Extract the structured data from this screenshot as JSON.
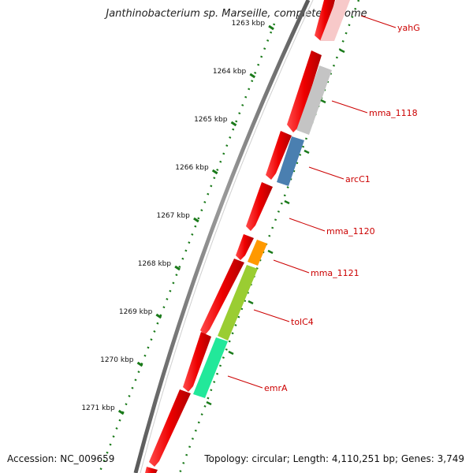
{
  "title": "Janthinobacterium sp. Marseille, complete genome",
  "footer": {
    "accession": "Accession: NC_009659",
    "summary": "Topology: circular; Length: 4,110,251 bp; Genes: 3,749"
  },
  "colors": {
    "backbone": "#7a7a7a",
    "tick": "#1a7a1a",
    "gene_label": "#cc0000",
    "cds": "#ee0000"
  },
  "ruler": {
    "unit": "kbp",
    "ticks": [
      "1263 kbp",
      "1264 kbp",
      "1265 kbp",
      "1266 kbp",
      "1267 kbp",
      "1268 kbp",
      "1269 kbp",
      "1270 kbp",
      "1271 kbp"
    ]
  },
  "genes": [
    {
      "name": "yahG",
      "color": "#f7c9c9"
    },
    {
      "name": "mma_1118",
      "color": "#c4c4c4"
    },
    {
      "name": "arcC1",
      "color": "#4a7fb0"
    },
    {
      "name": "mma_1120",
      "color": ""
    },
    {
      "name": "mma_1121",
      "color": "#ff9900"
    },
    {
      "name": "tolC4",
      "color": "#9acd32"
    },
    {
      "name": "emrA",
      "color": "#22e89a"
    }
  ]
}
